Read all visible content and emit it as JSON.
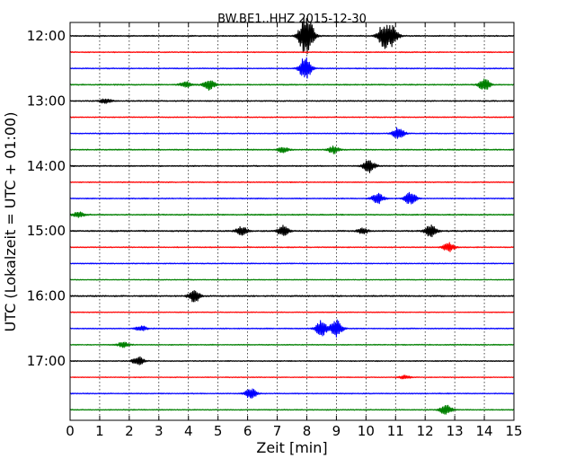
{
  "chart_data": {
    "type": "line",
    "title": "BW.BE1..HHZ 2015-12-30",
    "xlabel": "Zeit  [min]",
    "ylabel": "UTC (Lokalzeit = UTC + 01:00)",
    "xlim": [
      0,
      15
    ],
    "x_ticks": [
      "0",
      "1",
      "2",
      "3",
      "4",
      "5",
      "6",
      "7",
      "8",
      "9",
      "10",
      "11",
      "12",
      "13",
      "14",
      "15"
    ],
    "y_ticks": [
      "12:00",
      "13:00",
      "14:00",
      "15:00",
      "16:00",
      "17:00"
    ],
    "grid": true,
    "line_colors": [
      "#000000",
      "#ff0000",
      "#0000ff",
      "#008000"
    ],
    "series": [
      {
        "start": "12:00",
        "color": "#000000",
        "noise": 0.7,
        "events": [
          {
            "x": 7.9,
            "amp": 16
          },
          {
            "x": 8.1,
            "amp": 12
          },
          {
            "x": 10.6,
            "amp": 14
          },
          {
            "x": 10.9,
            "amp": 10
          }
        ]
      },
      {
        "start": "12:15",
        "color": "#ff0000",
        "noise": 0.6,
        "events": []
      },
      {
        "start": "12:30",
        "color": "#0000ff",
        "noise": 0.6,
        "events": [
          {
            "x": 7.95,
            "amp": 14
          }
        ]
      },
      {
        "start": "12:45",
        "color": "#008000",
        "noise": 0.7,
        "events": [
          {
            "x": 3.9,
            "amp": 3
          },
          {
            "x": 4.7,
            "amp": 6
          },
          {
            "x": 14.0,
            "amp": 7
          }
        ]
      },
      {
        "start": "13:00",
        "color": "#000000",
        "noise": 0.7,
        "events": [
          {
            "x": 1.2,
            "amp": 3
          }
        ]
      },
      {
        "start": "13:15",
        "color": "#ff0000",
        "noise": 0.6,
        "events": []
      },
      {
        "start": "13:30",
        "color": "#0000ff",
        "noise": 0.6,
        "events": [
          {
            "x": 11.1,
            "amp": 7
          }
        ]
      },
      {
        "start": "13:45",
        "color": "#008000",
        "noise": 0.7,
        "events": [
          {
            "x": 7.2,
            "amp": 3
          },
          {
            "x": 8.9,
            "amp": 4
          }
        ]
      },
      {
        "start": "14:00",
        "color": "#000000",
        "noise": 0.7,
        "events": [
          {
            "x": 10.1,
            "amp": 7
          }
        ]
      },
      {
        "start": "14:15",
        "color": "#ff0000",
        "noise": 0.6,
        "events": []
      },
      {
        "start": "14:30",
        "color": "#0000ff",
        "noise": 0.6,
        "events": [
          {
            "x": 10.4,
            "amp": 6
          },
          {
            "x": 11.5,
            "amp": 7
          }
        ]
      },
      {
        "start": "14:45",
        "color": "#008000",
        "noise": 0.7,
        "events": [
          {
            "x": 0.3,
            "amp": 3
          }
        ]
      },
      {
        "start": "15:00",
        "color": "#000000",
        "noise": 0.8,
        "events": [
          {
            "x": 5.8,
            "amp": 5
          },
          {
            "x": 7.2,
            "amp": 6
          },
          {
            "x": 9.9,
            "amp": 3
          },
          {
            "x": 12.2,
            "amp": 7
          }
        ]
      },
      {
        "start": "15:15",
        "color": "#ff0000",
        "noise": 0.6,
        "events": [
          {
            "x": 12.8,
            "amp": 5
          }
        ]
      },
      {
        "start": "15:30",
        "color": "#0000ff",
        "noise": 0.6,
        "events": []
      },
      {
        "start": "15:45",
        "color": "#008000",
        "noise": 0.5,
        "events": []
      },
      {
        "start": "16:00",
        "color": "#000000",
        "noise": 0.8,
        "events": [
          {
            "x": 4.2,
            "amp": 7
          }
        ]
      },
      {
        "start": "16:15",
        "color": "#ff0000",
        "noise": 0.5,
        "events": []
      },
      {
        "start": "16:30",
        "color": "#0000ff",
        "noise": 0.6,
        "events": [
          {
            "x": 2.4,
            "amp": 3
          },
          {
            "x": 8.5,
            "amp": 9
          },
          {
            "x": 9.0,
            "amp": 10
          }
        ]
      },
      {
        "start": "16:45",
        "color": "#008000",
        "noise": 0.6,
        "events": [
          {
            "x": 1.8,
            "amp": 3
          }
        ]
      },
      {
        "start": "17:00",
        "color": "#000000",
        "noise": 0.6,
        "events": [
          {
            "x": 2.3,
            "amp": 5
          }
        ]
      },
      {
        "start": "17:15",
        "color": "#ff0000",
        "noise": 0.5,
        "events": [
          {
            "x": 11.3,
            "amp": 2
          }
        ]
      },
      {
        "start": "17:30",
        "color": "#0000ff",
        "noise": 0.6,
        "events": [
          {
            "x": 6.1,
            "amp": 6
          }
        ]
      },
      {
        "start": "17:45",
        "color": "#008000",
        "noise": 0.6,
        "events": [
          {
            "x": 12.7,
            "amp": 6
          }
        ]
      }
    ]
  }
}
